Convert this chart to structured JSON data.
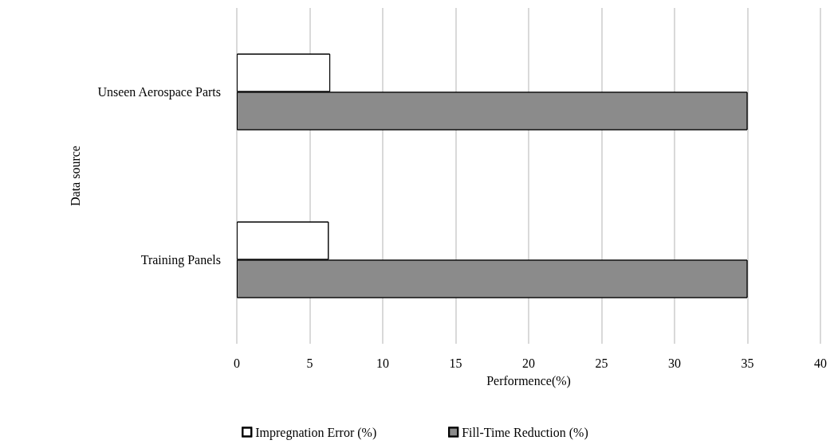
{
  "chart_data": {
    "type": "bar",
    "orientation": "horizontal",
    "xlabel": "Performence(%)",
    "ylabel": "Data source",
    "categories": [
      "Unseen Aerospace Parts",
      "Training Panels"
    ],
    "series": [
      {
        "name": "Impregnation Error (%)",
        "color": "#ffffff",
        "values": [
          6.4,
          6.3
        ]
      },
      {
        "name": "Fill-Time Reduction (%)",
        "color": "#5a5a5a",
        "values": [
          35,
          35
        ]
      }
    ],
    "xlim": [
      0,
      40
    ],
    "xticks": [
      0,
      5,
      10,
      15,
      20,
      25,
      30,
      35,
      40
    ],
    "grid": "x",
    "legend": "bottom"
  }
}
